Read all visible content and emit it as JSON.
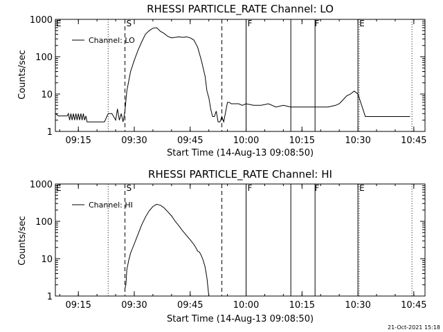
{
  "footer": {
    "date": "21-Oct-2021 15:18"
  },
  "chart_data": [
    {
      "type": "line",
      "title": "RHESSI PARTICLE_RATE Channel: LO",
      "xlabel": "Start Time (14-Aug-13 09:08:50)",
      "ylabel": "Counts/sec",
      "log_y": true,
      "xlim": [
        "09:08:50",
        "10:48:00"
      ],
      "ylim": [
        1,
        1000
      ],
      "x_ticks": [
        "09:15",
        "09:30",
        "09:45",
        "10:00",
        "10:15",
        "10:30",
        "10:45"
      ],
      "y_ticks": [
        "1",
        "10",
        "100",
        "1000"
      ],
      "legend": {
        "entries": [
          "Channel: LO"
        ],
        "position": "top-left"
      },
      "annotations": [
        {
          "label": "S",
          "x": "09:27:30",
          "style": "dashed"
        },
        {
          "label": "F",
          "x": "10:00:00",
          "style": "solid"
        },
        {
          "label": "F",
          "x": "10:18:00",
          "style": "solid"
        },
        {
          "label": "E",
          "x": "10:30:00",
          "style": "solid"
        }
      ],
      "vlines": [
        {
          "x": "09:23:00",
          "style": "dotted"
        },
        {
          "x": "09:27:30",
          "style": "dashed"
        },
        {
          "x": "09:53:30",
          "style": "dashed"
        },
        {
          "x": "10:00:00",
          "style": "solid"
        },
        {
          "x": "10:12:00",
          "style": "solid"
        },
        {
          "x": "10:18:30",
          "style": "solid"
        },
        {
          "x": "10:30:00",
          "style": "solid"
        },
        {
          "x": "10:30:20",
          "style": "dotted"
        },
        {
          "x": "10:44:30",
          "style": "dotted"
        }
      ],
      "series": [
        {
          "name": "Channel: LO",
          "x": [
            "09:08:50",
            "09:09:40",
            "09:10:30",
            "09:11:20",
            "09:12:00",
            "09:12:20",
            "09:12:40",
            "09:13:00",
            "09:13:20",
            "09:13:40",
            "09:14:00",
            "09:14:20",
            "09:14:40",
            "09:15:00",
            "09:15:20",
            "09:15:40",
            "09:16:00",
            "09:16:20",
            "09:16:40",
            "09:17:00",
            "09:17:20",
            "09:18:00",
            "09:19:00",
            "09:20:00",
            "09:21:00",
            "09:22:00",
            "09:23:00",
            "09:24:00",
            "09:25:00",
            "09:25:30",
            "09:26:00",
            "09:26:30",
            "09:27:00",
            "09:27:30",
            "09:28:00",
            "09:29:00",
            "09:30:00",
            "09:31:00",
            "09:32:00",
            "09:33:00",
            "09:34:00",
            "09:35:00",
            "09:36:00",
            "09:37:00",
            "09:38:00",
            "09:39:00",
            "09:40:00",
            "09:41:00",
            "09:42:00",
            "09:43:00",
            "09:44:00",
            "09:45:00",
            "09:46:00",
            "09:47:00",
            "09:48:00",
            "09:49:00",
            "09:49:30",
            "09:50:00",
            "09:50:30",
            "09:51:00",
            "09:51:30",
            "09:52:00",
            "09:52:30",
            "09:53:00",
            "09:53:30",
            "09:54:00",
            "09:55:00",
            "09:55:30",
            "09:56:00",
            "09:57:00",
            "09:58:00",
            "09:59:00",
            "10:00:00",
            "10:02:00",
            "10:04:00",
            "10:06:00",
            "10:08:00",
            "10:10:00",
            "10:12:00",
            "10:14:00",
            "10:16:00",
            "10:18:00",
            "10:20:00",
            "10:22:00",
            "10:24:00",
            "10:25:00",
            "10:26:00",
            "10:27:00",
            "10:28:00",
            "10:29:00",
            "10:30:00",
            "10:31:00",
            "10:32:00",
            "10:34:00",
            "10:36:00",
            "10:38:00",
            "10:40:00",
            "10:42:00",
            "10:44:00"
          ],
          "values": [
            3.0,
            2.6,
            2.6,
            2.6,
            2.6,
            3.0,
            2.0,
            3.0,
            2.0,
            3.0,
            2.0,
            3.0,
            2.0,
            3.0,
            2.0,
            3.0,
            2.0,
            3.0,
            2.0,
            2.6,
            1.8,
            1.8,
            1.8,
            1.8,
            1.8,
            1.8,
            3.0,
            3.0,
            2.0,
            4.0,
            2.0,
            3.0,
            1.8,
            3.5,
            12,
            40,
            80,
            150,
            250,
            400,
            500,
            580,
            600,
            480,
            420,
            350,
            320,
            330,
            340,
            330,
            340,
            320,
            280,
            180,
            80,
            30,
            12,
            8,
            4,
            2.5,
            2.5,
            3.5,
            1.8,
            1.8,
            2.5,
            1.8,
            6.0,
            6.0,
            5.5,
            5.5,
            5.5,
            5.0,
            5.5,
            5.0,
            5.0,
            5.5,
            4.5,
            5.0,
            4.5,
            4.5,
            4.5,
            4.5,
            4.5,
            4.5,
            5.0,
            5.5,
            7.0,
            9.0,
            10.0,
            12.0,
            10.0,
            5.0,
            2.5,
            2.5,
            2.5,
            2.5,
            2.5,
            2.5,
            2.5
          ]
        }
      ]
    },
    {
      "type": "line",
      "title": "RHESSI PARTICLE_RATE Channel: HI",
      "xlabel": "Start Time (14-Aug-13 09:08:50)",
      "ylabel": "Counts/sec",
      "log_y": true,
      "xlim": [
        "09:08:50",
        "10:48:00"
      ],
      "ylim": [
        1,
        1000
      ],
      "x_ticks": [
        "09:15",
        "09:30",
        "09:45",
        "10:00",
        "10:15",
        "10:30",
        "10:45"
      ],
      "y_ticks": [
        "1",
        "10",
        "100",
        "1000"
      ],
      "legend": {
        "entries": [
          "Channel: HI"
        ],
        "position": "top-left"
      },
      "annotations": [
        {
          "label": "S",
          "x": "09:27:30",
          "style": "dashed"
        },
        {
          "label": "F",
          "x": "10:00:00",
          "style": "solid"
        },
        {
          "label": "F",
          "x": "10:18:00",
          "style": "solid"
        },
        {
          "label": "E",
          "x": "10:30:00",
          "style": "solid"
        }
      ],
      "vlines": [
        {
          "x": "09:23:00",
          "style": "dotted"
        },
        {
          "x": "09:27:30",
          "style": "dashed"
        },
        {
          "x": "09:53:30",
          "style": "dashed"
        },
        {
          "x": "10:00:00",
          "style": "solid"
        },
        {
          "x": "10:12:00",
          "style": "solid"
        },
        {
          "x": "10:18:30",
          "style": "solid"
        },
        {
          "x": "10:30:00",
          "style": "solid"
        },
        {
          "x": "10:30:20",
          "style": "dotted"
        },
        {
          "x": "10:44:30",
          "style": "dotted"
        }
      ],
      "series": [
        {
          "name": "Channel: HI",
          "x": [
            "09:27:30",
            "09:27:45",
            "09:28:00",
            "09:28:30",
            "09:29:00",
            "09:30:00",
            "09:31:00",
            "09:32:00",
            "09:33:00",
            "09:34:00",
            "09:35:00",
            "09:36:00",
            "09:37:00",
            "09:38:00",
            "09:39:00",
            "09:40:00",
            "09:41:00",
            "09:42:00",
            "09:43:00",
            "09:44:00",
            "09:45:00",
            "09:46:00",
            "09:46:30",
            "09:47:00",
            "09:47:30",
            "09:48:00",
            "09:48:30",
            "09:49:00",
            "09:49:30",
            "09:50:00"
          ],
          "values": [
            1.6,
            2.0,
            5,
            9,
            14,
            25,
            45,
            80,
            130,
            190,
            250,
            285,
            270,
            230,
            180,
            140,
            100,
            75,
            55,
            42,
            32,
            24,
            20,
            16,
            15,
            12,
            9,
            6,
            3,
            1
          ]
        }
      ]
    }
  ]
}
